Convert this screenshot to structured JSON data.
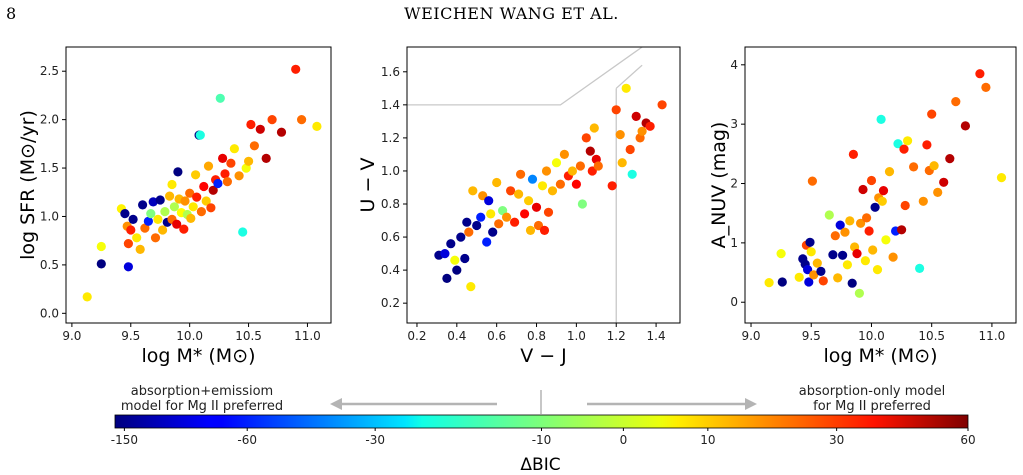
{
  "header": {
    "page_number": "8",
    "running_head": "WEICHEN WANG ET AL."
  },
  "chart_data": [
    {
      "type": "scatter",
      "name": "sfr-vs-mass",
      "xlabel": "log M* (M⊙)",
      "ylabel": "log SFR (M⊙/yr)",
      "xlim": [
        8.95,
        11.2
      ],
      "ylim": [
        -0.1,
        2.75
      ],
      "xticks": [
        "9.0",
        "9.5",
        "10.0",
        "10.5",
        "11.0"
      ],
      "yticks": [
        "0.0",
        "0.5",
        "1.0",
        "1.5",
        "2.0",
        "2.5"
      ],
      "grid": false,
      "points": [
        {
          "x": 9.13,
          "y": 0.17,
          "c": 5
        },
        {
          "x": 9.25,
          "y": 0.69,
          "c": 2
        },
        {
          "x": 9.25,
          "y": 0.51,
          "c": -200
        },
        {
          "x": 9.42,
          "y": 1.08,
          "c": 4
        },
        {
          "x": 9.45,
          "y": 1.03,
          "c": -150
        },
        {
          "x": 9.47,
          "y": 0.9,
          "c": 15
        },
        {
          "x": 9.48,
          "y": 0.72,
          "c": 25
        },
        {
          "x": 9.48,
          "y": 0.48,
          "c": -100
        },
        {
          "x": 9.5,
          "y": 0.86,
          "c": 30
        },
        {
          "x": 9.52,
          "y": 0.97,
          "c": -150
        },
        {
          "x": 9.55,
          "y": 0.78,
          "c": 5
        },
        {
          "x": 9.58,
          "y": 0.66,
          "c": 10
        },
        {
          "x": 9.6,
          "y": 1.12,
          "c": -150
        },
        {
          "x": 9.62,
          "y": 0.88,
          "c": 20
        },
        {
          "x": 9.65,
          "y": 0.95,
          "c": -60
        },
        {
          "x": 9.67,
          "y": 1.03,
          "c": -10
        },
        {
          "x": 9.69,
          "y": 1.15,
          "c": -120
        },
        {
          "x": 9.71,
          "y": 0.78,
          "c": 20
        },
        {
          "x": 9.73,
          "y": 0.97,
          "c": 5
        },
        {
          "x": 9.75,
          "y": 1.17,
          "c": -150
        },
        {
          "x": 9.77,
          "y": 0.86,
          "c": 10
        },
        {
          "x": 9.79,
          "y": 1.05,
          "c": -5
        },
        {
          "x": 9.81,
          "y": 0.94,
          "c": -150
        },
        {
          "x": 9.83,
          "y": 1.21,
          "c": 10
        },
        {
          "x": 9.85,
          "y": 0.97,
          "c": 20
        },
        {
          "x": 9.85,
          "y": 1.33,
          "c": 5
        },
        {
          "x": 9.87,
          "y": 1.1,
          "c": -5
        },
        {
          "x": 9.89,
          "y": 0.92,
          "c": 40
        },
        {
          "x": 9.9,
          "y": 1.46,
          "c": -200
        },
        {
          "x": 9.91,
          "y": 1.18,
          "c": 10
        },
        {
          "x": 9.93,
          "y": 1.04,
          "c": 3
        },
        {
          "x": 9.95,
          "y": 0.87,
          "c": 30
        },
        {
          "x": 9.96,
          "y": 1.16,
          "c": 15
        },
        {
          "x": 9.98,
          "y": 1.02,
          "c": -5
        },
        {
          "x": 10.0,
          "y": 1.24,
          "c": 20
        },
        {
          "x": 10.01,
          "y": 0.98,
          "c": 10
        },
        {
          "x": 10.03,
          "y": 1.1,
          "c": 5
        },
        {
          "x": 10.05,
          "y": 1.43,
          "c": 8
        },
        {
          "x": 10.06,
          "y": 1.2,
          "c": 30
        },
        {
          "x": 10.08,
          "y": 1.84,
          "c": -200
        },
        {
          "x": 10.09,
          "y": 1.84,
          "c": -20
        },
        {
          "x": 10.1,
          "y": 1.05,
          "c": 20
        },
        {
          "x": 10.12,
          "y": 1.31,
          "c": 35
        },
        {
          "x": 10.14,
          "y": 1.16,
          "c": 8
        },
        {
          "x": 10.16,
          "y": 1.52,
          "c": 12
        },
        {
          "x": 10.18,
          "y": 1.09,
          "c": 25
        },
        {
          "x": 10.2,
          "y": 1.27,
          "c": 50
        },
        {
          "x": 10.22,
          "y": 1.38,
          "c": 30
        },
        {
          "x": 10.24,
          "y": 1.34,
          "c": -60
        },
        {
          "x": 10.26,
          "y": 2.22,
          "c": -15
        },
        {
          "x": 10.28,
          "y": 1.6,
          "c": 40
        },
        {
          "x": 10.3,
          "y": 1.44,
          "c": 30
        },
        {
          "x": 10.32,
          "y": 1.36,
          "c": 20
        },
        {
          "x": 10.35,
          "y": 1.55,
          "c": 25
        },
        {
          "x": 10.38,
          "y": 1.7,
          "c": 5
        },
        {
          "x": 10.42,
          "y": 1.42,
          "c": 15
        },
        {
          "x": 10.45,
          "y": 0.84,
          "c": -20
        },
        {
          "x": 10.48,
          "y": 1.5,
          "c": 2
        },
        {
          "x": 10.5,
          "y": 1.57,
          "c": 10
        },
        {
          "x": 10.52,
          "y": 1.95,
          "c": 30
        },
        {
          "x": 10.55,
          "y": 1.73,
          "c": 20
        },
        {
          "x": 10.6,
          "y": 1.9,
          "c": 45
        },
        {
          "x": 10.65,
          "y": 1.6,
          "c": 50
        },
        {
          "x": 10.7,
          "y": 2.0,
          "c": 25
        },
        {
          "x": 10.78,
          "y": 1.87,
          "c": 50
        },
        {
          "x": 10.9,
          "y": 2.52,
          "c": 30
        },
        {
          "x": 10.95,
          "y": 2.0,
          "c": 20
        },
        {
          "x": 11.08,
          "y": 1.93,
          "c": 5
        }
      ]
    },
    {
      "type": "scatter",
      "name": "uvj-diagram",
      "xlabel": "V − J",
      "ylabel": "U − V",
      "xlim": [
        0.15,
        1.52
      ],
      "ylim": [
        0.08,
        1.75
      ],
      "xticks": [
        "0.2",
        "0.4",
        "0.6",
        "0.8",
        "1.0",
        "1.2",
        "1.4"
      ],
      "yticks": [
        "0.2",
        "0.4",
        "0.6",
        "0.8",
        "1.0",
        "1.2",
        "1.4",
        "1.6"
      ],
      "quiescent_boundary": [
        [
          0.15,
          1.4
        ],
        [
          0.92,
          1.4
        ],
        [
          1.33,
          1.75
        ]
      ],
      "vertical_line_x": 1.2,
      "points": [
        {
          "x": 0.31,
          "y": 0.49,
          "c": -150
        },
        {
          "x": 0.34,
          "y": 0.5,
          "c": -100
        },
        {
          "x": 0.35,
          "y": 0.35,
          "c": -200
        },
        {
          "x": 0.37,
          "y": 0.56,
          "c": -150
        },
        {
          "x": 0.39,
          "y": 0.46,
          "c": 2
        },
        {
          "x": 0.4,
          "y": 0.4,
          "c": -200
        },
        {
          "x": 0.42,
          "y": 0.6,
          "c": -150
        },
        {
          "x": 0.44,
          "y": 0.47,
          "c": -150
        },
        {
          "x": 0.45,
          "y": 0.69,
          "c": -150
        },
        {
          "x": 0.46,
          "y": 0.63,
          "c": 20
        },
        {
          "x": 0.47,
          "y": 0.3,
          "c": 5
        },
        {
          "x": 0.48,
          "y": 0.88,
          "c": 10
        },
        {
          "x": 0.5,
          "y": 0.67,
          "c": -150
        },
        {
          "x": 0.52,
          "y": 0.72,
          "c": -60
        },
        {
          "x": 0.53,
          "y": 0.85,
          "c": 15
        },
        {
          "x": 0.55,
          "y": 0.57,
          "c": -60
        },
        {
          "x": 0.56,
          "y": 0.82,
          "c": -100
        },
        {
          "x": 0.57,
          "y": 0.74,
          "c": 5
        },
        {
          "x": 0.58,
          "y": 0.63,
          "c": -150
        },
        {
          "x": 0.6,
          "y": 0.93,
          "c": 10
        },
        {
          "x": 0.61,
          "y": 0.68,
          "c": 20
        },
        {
          "x": 0.63,
          "y": 0.76,
          "c": -10
        },
        {
          "x": 0.65,
          "y": 0.72,
          "c": 15
        },
        {
          "x": 0.67,
          "y": 0.88,
          "c": 25
        },
        {
          "x": 0.69,
          "y": 0.69,
          "c": 30
        },
        {
          "x": 0.71,
          "y": 0.86,
          "c": 10
        },
        {
          "x": 0.72,
          "y": 0.98,
          "c": 20
        },
        {
          "x": 0.74,
          "y": 0.74,
          "c": 35
        },
        {
          "x": 0.76,
          "y": 0.82,
          "c": 8
        },
        {
          "x": 0.77,
          "y": 0.64,
          "c": 10
        },
        {
          "x": 0.78,
          "y": 0.95,
          "c": -40
        },
        {
          "x": 0.8,
          "y": 0.78,
          "c": 40
        },
        {
          "x": 0.81,
          "y": 0.67,
          "c": 20
        },
        {
          "x": 0.83,
          "y": 0.91,
          "c": 5
        },
        {
          "x": 0.84,
          "y": 0.64,
          "c": 30
        },
        {
          "x": 0.85,
          "y": 1.0,
          "c": 15
        },
        {
          "x": 0.86,
          "y": 0.75,
          "c": 25
        },
        {
          "x": 0.88,
          "y": 0.88,
          "c": 10
        },
        {
          "x": 0.9,
          "y": 1.05,
          "c": 2
        },
        {
          "x": 0.92,
          "y": 0.92,
          "c": 20
        },
        {
          "x": 0.94,
          "y": 1.1,
          "c": 15
        },
        {
          "x": 0.96,
          "y": 0.97,
          "c": 30
        },
        {
          "x": 0.98,
          "y": 1.0,
          "c": 10
        },
        {
          "x": 1.0,
          "y": 0.92,
          "c": 35
        },
        {
          "x": 1.02,
          "y": 1.03,
          "c": 20
        },
        {
          "x": 1.03,
          "y": 0.8,
          "c": -10
        },
        {
          "x": 1.05,
          "y": 1.2,
          "c": 25
        },
        {
          "x": 1.07,
          "y": 1.12,
          "c": 50
        },
        {
          "x": 1.08,
          "y": 1.0,
          "c": 30
        },
        {
          "x": 1.09,
          "y": 1.26,
          "c": 10
        },
        {
          "x": 1.1,
          "y": 1.07,
          "c": 40
        },
        {
          "x": 1.11,
          "y": 1.03,
          "c": 20
        },
        {
          "x": 1.18,
          "y": 0.91,
          "c": 30
        },
        {
          "x": 1.2,
          "y": 1.37,
          "c": 25
        },
        {
          "x": 1.22,
          "y": 1.22,
          "c": 15
        },
        {
          "x": 1.23,
          "y": 1.05,
          "c": 10
        },
        {
          "x": 1.25,
          "y": 1.5,
          "c": 5
        },
        {
          "x": 1.27,
          "y": 1.13,
          "c": 25
        },
        {
          "x": 1.28,
          "y": 0.98,
          "c": -20
        },
        {
          "x": 1.3,
          "y": 1.33,
          "c": 45
        },
        {
          "x": 1.32,
          "y": 1.2,
          "c": 20
        },
        {
          "x": 1.33,
          "y": 1.24,
          "c": 15
        },
        {
          "x": 1.35,
          "y": 1.29,
          "c": 50
        },
        {
          "x": 1.37,
          "y": 1.27,
          "c": 30
        },
        {
          "x": 1.43,
          "y": 1.4,
          "c": 25
        }
      ]
    },
    {
      "type": "scatter",
      "name": "anuv-vs-mass",
      "xlabel": "log M* (M⊙)",
      "ylabel": "A_NUV (mag)",
      "xlim": [
        8.95,
        11.2
      ],
      "ylim": [
        -0.35,
        4.3
      ],
      "xticks": [
        "9.0",
        "9.5",
        "10.0",
        "10.5",
        "11.0"
      ],
      "yticks": [
        "0",
        "1",
        "2",
        "3",
        "4"
      ],
      "points": [
        {
          "x": 9.15,
          "y": 0.33,
          "c": 5
        },
        {
          "x": 9.25,
          "y": 0.82,
          "c": 2
        },
        {
          "x": 9.26,
          "y": 0.34,
          "c": -200
        },
        {
          "x": 9.4,
          "y": 0.42,
          "c": 5
        },
        {
          "x": 9.43,
          "y": 0.73,
          "c": -150
        },
        {
          "x": 9.45,
          "y": 0.64,
          "c": -150
        },
        {
          "x": 9.46,
          "y": 0.96,
          "c": 25
        },
        {
          "x": 9.47,
          "y": 0.55,
          "c": -100
        },
        {
          "x": 9.48,
          "y": 0.34,
          "c": -100
        },
        {
          "x": 9.49,
          "y": 1.01,
          "c": -150
        },
        {
          "x": 9.5,
          "y": 0.85,
          "c": 5
        },
        {
          "x": 9.51,
          "y": 2.04,
          "c": 20
        },
        {
          "x": 9.52,
          "y": 0.46,
          "c": 15
        },
        {
          "x": 9.55,
          "y": 0.66,
          "c": 10
        },
        {
          "x": 9.58,
          "y": 0.52,
          "c": -150
        },
        {
          "x": 9.6,
          "y": 0.36,
          "c": 25
        },
        {
          "x": 9.65,
          "y": 1.47,
          "c": -5
        },
        {
          "x": 9.68,
          "y": 0.8,
          "c": -150
        },
        {
          "x": 9.7,
          "y": 1.12,
          "c": 20
        },
        {
          "x": 9.72,
          "y": 0.41,
          "c": 10
        },
        {
          "x": 9.74,
          "y": 1.3,
          "c": -100
        },
        {
          "x": 9.76,
          "y": 0.79,
          "c": -150
        },
        {
          "x": 9.78,
          "y": 1.18,
          "c": 15
        },
        {
          "x": 9.8,
          "y": 0.63,
          "c": 5
        },
        {
          "x": 9.82,
          "y": 1.37,
          "c": 10
        },
        {
          "x": 9.84,
          "y": 0.32,
          "c": -200
        },
        {
          "x": 9.85,
          "y": 2.49,
          "c": 30
        },
        {
          "x": 9.86,
          "y": 0.93,
          "c": 10
        },
        {
          "x": 9.88,
          "y": 0.82,
          "c": 40
        },
        {
          "x": 9.9,
          "y": 0.15,
          "c": -5
        },
        {
          "x": 9.91,
          "y": 1.33,
          "c": 15
        },
        {
          "x": 9.93,
          "y": 1.9,
          "c": 45
        },
        {
          "x": 9.95,
          "y": 0.7,
          "c": 5
        },
        {
          "x": 9.96,
          "y": 1.42,
          "c": 20
        },
        {
          "x": 9.98,
          "y": 1.2,
          "c": 30
        },
        {
          "x": 10.0,
          "y": 2.05,
          "c": 25
        },
        {
          "x": 10.01,
          "y": 0.88,
          "c": 10
        },
        {
          "x": 10.03,
          "y": 1.6,
          "c": -150
        },
        {
          "x": 10.05,
          "y": 0.55,
          "c": 5
        },
        {
          "x": 10.06,
          "y": 1.76,
          "c": 15
        },
        {
          "x": 10.08,
          "y": 3.08,
          "c": -20
        },
        {
          "x": 10.09,
          "y": 1.7,
          "c": 8
        },
        {
          "x": 10.1,
          "y": 1.88,
          "c": 40
        },
        {
          "x": 10.12,
          "y": 1.05,
          "c": 2
        },
        {
          "x": 10.15,
          "y": 2.2,
          "c": 10
        },
        {
          "x": 10.18,
          "y": 0.76,
          "c": 15
        },
        {
          "x": 10.2,
          "y": 1.2,
          "c": -60
        },
        {
          "x": 10.22,
          "y": 2.67,
          "c": -20
        },
        {
          "x": 10.25,
          "y": 1.22,
          "c": 50
        },
        {
          "x": 10.27,
          "y": 2.58,
          "c": 30
        },
        {
          "x": 10.28,
          "y": 1.63,
          "c": 25
        },
        {
          "x": 10.3,
          "y": 2.72,
          "c": 5
        },
        {
          "x": 10.35,
          "y": 2.28,
          "c": 20
        },
        {
          "x": 10.4,
          "y": 0.57,
          "c": -20
        },
        {
          "x": 10.43,
          "y": 1.7,
          "c": 15
        },
        {
          "x": 10.46,
          "y": 2.65,
          "c": 30
        },
        {
          "x": 10.48,
          "y": 2.22,
          "c": 20
        },
        {
          "x": 10.5,
          "y": 3.17,
          "c": 25
        },
        {
          "x": 10.52,
          "y": 2.3,
          "c": 10
        },
        {
          "x": 10.55,
          "y": 1.85,
          "c": 15
        },
        {
          "x": 10.6,
          "y": 2.02,
          "c": 45
        },
        {
          "x": 10.65,
          "y": 2.42,
          "c": 50
        },
        {
          "x": 10.7,
          "y": 3.38,
          "c": 20
        },
        {
          "x": 10.78,
          "y": 2.97,
          "c": 50
        },
        {
          "x": 10.9,
          "y": 3.85,
          "c": 30
        },
        {
          "x": 10.95,
          "y": 3.62,
          "c": 20
        },
        {
          "x": 11.08,
          "y": 2.1,
          "c": 5
        }
      ]
    },
    {
      "type": "colorbar",
      "name": "delta-bic",
      "label": "ΔBIC",
      "ticks": [
        "-150",
        "-60",
        "-30",
        "-10",
        "0",
        "10",
        "30",
        "60"
      ],
      "left_note_line1": "absorption+emissiom",
      "left_note_line2": "model for Mg II preferred",
      "right_note_line1": "absorption-only model",
      "right_note_line2": "for Mg II preferred"
    }
  ]
}
